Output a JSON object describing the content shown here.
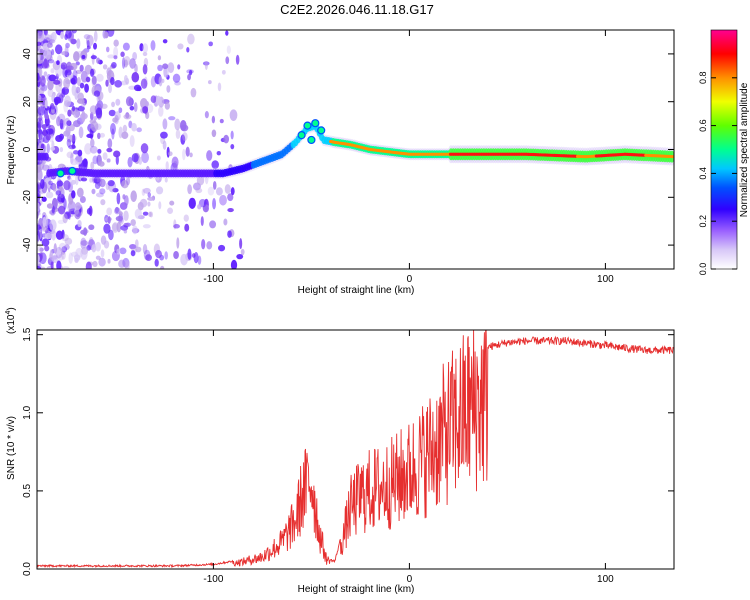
{
  "title": "C2E2.2026.046.11.18.G17",
  "chart_data": [
    {
      "type": "heatmap",
      "panel": "spectrogram",
      "xlabel": "Height of straight line (km)",
      "ylabel": "Frequency (Hz)",
      "xlim": [
        -190,
        135
      ],
      "ylim": [
        -50,
        50
      ],
      "xticks": [
        -100,
        0,
        100
      ],
      "xtick_labels": [
        "-100",
        "0",
        "100"
      ],
      "yticks": [
        -40,
        -20,
        0,
        20,
        40
      ],
      "ytick_labels": [
        "-40",
        "-20",
        "0",
        "20",
        "40"
      ],
      "track": [
        {
          "x": -185,
          "f": -10
        },
        {
          "x": -175,
          "f": -9
        },
        {
          "x": -160,
          "f": -10
        },
        {
          "x": -140,
          "f": -10
        },
        {
          "x": -120,
          "f": -10
        },
        {
          "x": -105,
          "f": -10
        },
        {
          "x": -95,
          "f": -10
        },
        {
          "x": -85,
          "f": -8
        },
        {
          "x": -75,
          "f": -5
        },
        {
          "x": -65,
          "f": -2
        },
        {
          "x": -58,
          "f": 3
        },
        {
          "x": -52,
          "f": 9
        },
        {
          "x": -48,
          "f": 10
        },
        {
          "x": -44,
          "f": 4
        },
        {
          "x": -38,
          "f": 3
        },
        {
          "x": -30,
          "f": 2
        },
        {
          "x": -20,
          "f": 0
        },
        {
          "x": -10,
          "f": -1
        },
        {
          "x": 0,
          "f": -2
        },
        {
          "x": 10,
          "f": -2
        },
        {
          "x": 30,
          "f": -2
        },
        {
          "x": 60,
          "f": -2
        },
        {
          "x": 90,
          "f": -3
        },
        {
          "x": 110,
          "f": -2
        },
        {
          "x": 135,
          "f": -3
        }
      ],
      "colorbar": {
        "label": "Normalized spectral amplitude",
        "range": [
          0,
          1
        ],
        "ticks": [
          "0.0",
          "0.2",
          "0.4",
          "0.6",
          "0.8"
        ],
        "colors": [
          "#ffffff",
          "#b090f0",
          "#5a00ff",
          "#0000ff",
          "#00c8ff",
          "#00ff88",
          "#80ff00",
          "#ffff00",
          "#ff8000",
          "#ff0000",
          "#ff0080"
        ]
      }
    },
    {
      "type": "line",
      "panel": "snr",
      "xlabel": "Height of straight line (km)",
      "ylabel": "SNR (10 * v/v)",
      "scale_label": "(x10",
      "scale_exp": "4",
      "scale_close": ")",
      "color": "#e62e2e",
      "xlim": [
        -190,
        135
      ],
      "ylim": [
        0,
        1.53
      ],
      "xticks": [
        -100,
        0,
        100
      ],
      "xtick_labels": [
        "-100",
        "0",
        "100"
      ],
      "yticks": [
        0.0,
        0.5,
        1.0,
        1.5
      ],
      "ytick_labels": [
        "0.0",
        "0.5",
        "1.0",
        "1.5"
      ],
      "envelope": [
        {
          "x": -190,
          "y": 0.02
        },
        {
          "x": -120,
          "y": 0.02
        },
        {
          "x": -100,
          "y": 0.03
        },
        {
          "x": -85,
          "y": 0.06
        },
        {
          "x": -75,
          "y": 0.1
        },
        {
          "x": -65,
          "y": 0.22
        },
        {
          "x": -58,
          "y": 0.4
        },
        {
          "x": -55,
          "y": 0.6
        },
        {
          "x": -50,
          "y": 0.75
        },
        {
          "x": -46,
          "y": 0.3
        },
        {
          "x": -42,
          "y": 0.06
        },
        {
          "x": -38,
          "y": 0.05
        },
        {
          "x": -34,
          "y": 0.25
        },
        {
          "x": -30,
          "y": 0.5
        },
        {
          "x": -25,
          "y": 0.6
        },
        {
          "x": -20,
          "y": 0.65
        },
        {
          "x": -10,
          "y": 0.7
        },
        {
          "x": 0,
          "y": 0.8
        },
        {
          "x": 10,
          "y": 0.95
        },
        {
          "x": 20,
          "y": 1.15
        },
        {
          "x": 30,
          "y": 1.32
        },
        {
          "x": 40,
          "y": 1.42
        },
        {
          "x": 50,
          "y": 1.45
        },
        {
          "x": 60,
          "y": 1.46
        },
        {
          "x": 80,
          "y": 1.46
        },
        {
          "x": 100,
          "y": 1.43
        },
        {
          "x": 120,
          "y": 1.4
        },
        {
          "x": 135,
          "y": 1.4
        }
      ]
    }
  ]
}
